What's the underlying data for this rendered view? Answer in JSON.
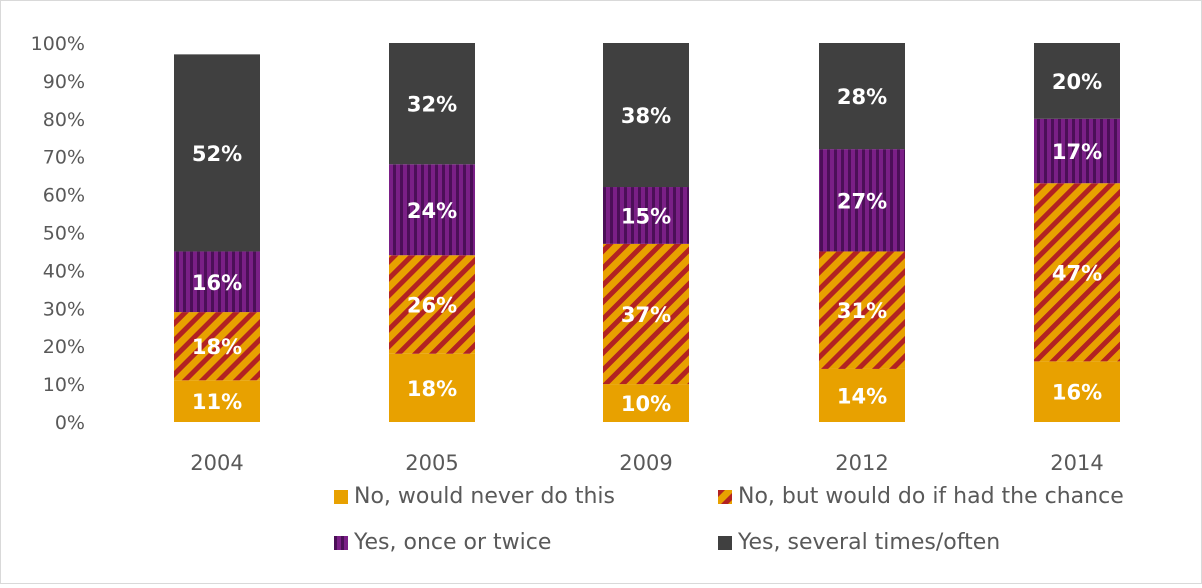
{
  "chart_data": {
    "type": "bar",
    "stacked": true,
    "categories": [
      "2004",
      "2005",
      "2009",
      "2012",
      "2014"
    ],
    "y_ticks": [
      "0%",
      "10%",
      "20%",
      "30%",
      "40%",
      "50%",
      "60%",
      "70%",
      "80%",
      "90%",
      "100%"
    ],
    "ylim": [
      0,
      100
    ],
    "grid": false,
    "legend_position": "bottom",
    "series": [
      {
        "name": "No, would never do this",
        "values": [
          11,
          18,
          10,
          14,
          16
        ],
        "labels": [
          "11%",
          "18%",
          "10%",
          "14%",
          "16%"
        ],
        "color": "#E8A100",
        "pattern": "solid"
      },
      {
        "name": "No, but would do if had the chance",
        "values": [
          18,
          26,
          37,
          31,
          47
        ],
        "labels": [
          "18%",
          "26%",
          "37%",
          "31%",
          "47%"
        ],
        "color": "#E8A100",
        "stripe_color": "#B22222",
        "pattern": "diagonal-stripes"
      },
      {
        "name": "Yes, once or twice",
        "values": [
          16,
          24,
          15,
          27,
          17
        ],
        "labels": [
          "16%",
          "24%",
          "15%",
          "27%",
          "17%"
        ],
        "color": "#7A1F86",
        "stripe_color": "#4B0F57",
        "pattern": "vertical-stripes"
      },
      {
        "name": "Yes, several times/often",
        "values": [
          52,
          32,
          38,
          28,
          20
        ],
        "labels": [
          "52%",
          "32%",
          "38%",
          "28%",
          "20%"
        ],
        "color": "#404040",
        "pattern": "solid"
      }
    ]
  }
}
